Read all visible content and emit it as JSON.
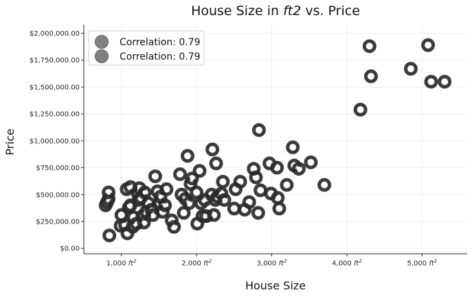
{
  "chart_data": {
    "type": "scatter",
    "title": "House Size in ft2 vs. Price",
    "title_parts": {
      "prefix": "House Size in ",
      "unit": "ft",
      "unit_exp": "2",
      "suffix": " vs. Price"
    },
    "xlabel": "House Size",
    "ylabel": "Price",
    "xlim": [
      500,
      5600
    ],
    "ylim": [
      -50000,
      2080000
    ],
    "x_ticks": [
      1000,
      2000,
      3000,
      4000,
      5000
    ],
    "x_tick_labels": [
      "1,000 ft",
      "2,000 ft",
      "3,000 ft",
      "4,000 ft",
      "5,000 ft"
    ],
    "x_tick_superscript": "2",
    "y_ticks": [
      0,
      250000,
      500000,
      750000,
      1000000,
      1250000,
      1500000,
      1750000,
      2000000
    ],
    "y_tick_labels": [
      "$0.00",
      "$250,000.00",
      "$500,000.00",
      "$750,000.00",
      "$1,000,000.00",
      "$1,250,000.00",
      "$1,500,000.00",
      "$1,750,000.00",
      "$2,000,000.00"
    ],
    "grid": true,
    "legend_position": "top-left",
    "legend": [
      "Correlation: 0.79",
      "Correlation: 0.79"
    ],
    "colors": {
      "marker_outer": "#2a2a2a",
      "marker_inner": "#ffffff",
      "grid": "#eeeeee",
      "legend_marker": "#808080"
    },
    "series": [
      {
        "points": [
          [
            840,
            120000
          ],
          [
            790,
            400000
          ],
          [
            810,
            430000
          ],
          [
            830,
            460000
          ],
          [
            830,
            520000
          ],
          [
            990,
            210000
          ],
          [
            1000,
            310000
          ],
          [
            1050,
            220000
          ],
          [
            1070,
            550000
          ],
          [
            1080,
            140000
          ],
          [
            1100,
            380000
          ],
          [
            1120,
            400000
          ],
          [
            1120,
            570000
          ],
          [
            1150,
            200000
          ],
          [
            1160,
            290000
          ],
          [
            1200,
            230000
          ],
          [
            1220,
            510000
          ],
          [
            1230,
            450000
          ],
          [
            1240,
            560000
          ],
          [
            1260,
            470000
          ],
          [
            1280,
            300000
          ],
          [
            1300,
            240000
          ],
          [
            1310,
            520000
          ],
          [
            1330,
            340000
          ],
          [
            1360,
            420000
          ],
          [
            1400,
            360000
          ],
          [
            1420,
            310000
          ],
          [
            1450,
            670000
          ],
          [
            1480,
            530000
          ],
          [
            1510,
            420000
          ],
          [
            1520,
            480000
          ],
          [
            1550,
            340000
          ],
          [
            1580,
            400000
          ],
          [
            1600,
            550000
          ],
          [
            1670,
            260000
          ],
          [
            1700,
            200000
          ],
          [
            1780,
            690000
          ],
          [
            1800,
            500000
          ],
          [
            1830,
            330000
          ],
          [
            1850,
            460000
          ],
          [
            1880,
            860000
          ],
          [
            1900,
            420000
          ],
          [
            1920,
            600000
          ],
          [
            1940,
            650000
          ],
          [
            2000,
            520000
          ],
          [
            2010,
            230000
          ],
          [
            2040,
            720000
          ],
          [
            2060,
            420000
          ],
          [
            2080,
            300000
          ],
          [
            2110,
            450000
          ],
          [
            2130,
            300000
          ],
          [
            2200,
            500000
          ],
          [
            2210,
            920000
          ],
          [
            2230,
            310000
          ],
          [
            2250,
            450000
          ],
          [
            2260,
            790000
          ],
          [
            2280,
            480000
          ],
          [
            2330,
            510000
          ],
          [
            2350,
            620000
          ],
          [
            2370,
            450000
          ],
          [
            2500,
            370000
          ],
          [
            2520,
            550000
          ],
          [
            2580,
            620000
          ],
          [
            2640,
            360000
          ],
          [
            2700,
            430000
          ],
          [
            2760,
            740000
          ],
          [
            2790,
            660000
          ],
          [
            2820,
            330000
          ],
          [
            2830,
            1100000
          ],
          [
            2850,
            540000
          ],
          [
            2970,
            790000
          ],
          [
            2990,
            510000
          ],
          [
            3070,
            750000
          ],
          [
            3080,
            470000
          ],
          [
            3100,
            370000
          ],
          [
            3200,
            590000
          ],
          [
            3280,
            940000
          ],
          [
            3300,
            770000
          ],
          [
            3360,
            740000
          ],
          [
            3520,
            800000
          ],
          [
            3700,
            590000
          ],
          [
            4180,
            1290000
          ],
          [
            4300,
            1880000
          ],
          [
            4320,
            1600000
          ],
          [
            4850,
            1670000
          ],
          [
            5080,
            1890000
          ],
          [
            5120,
            1550000
          ],
          [
            5300,
            1550000
          ]
        ]
      }
    ]
  }
}
